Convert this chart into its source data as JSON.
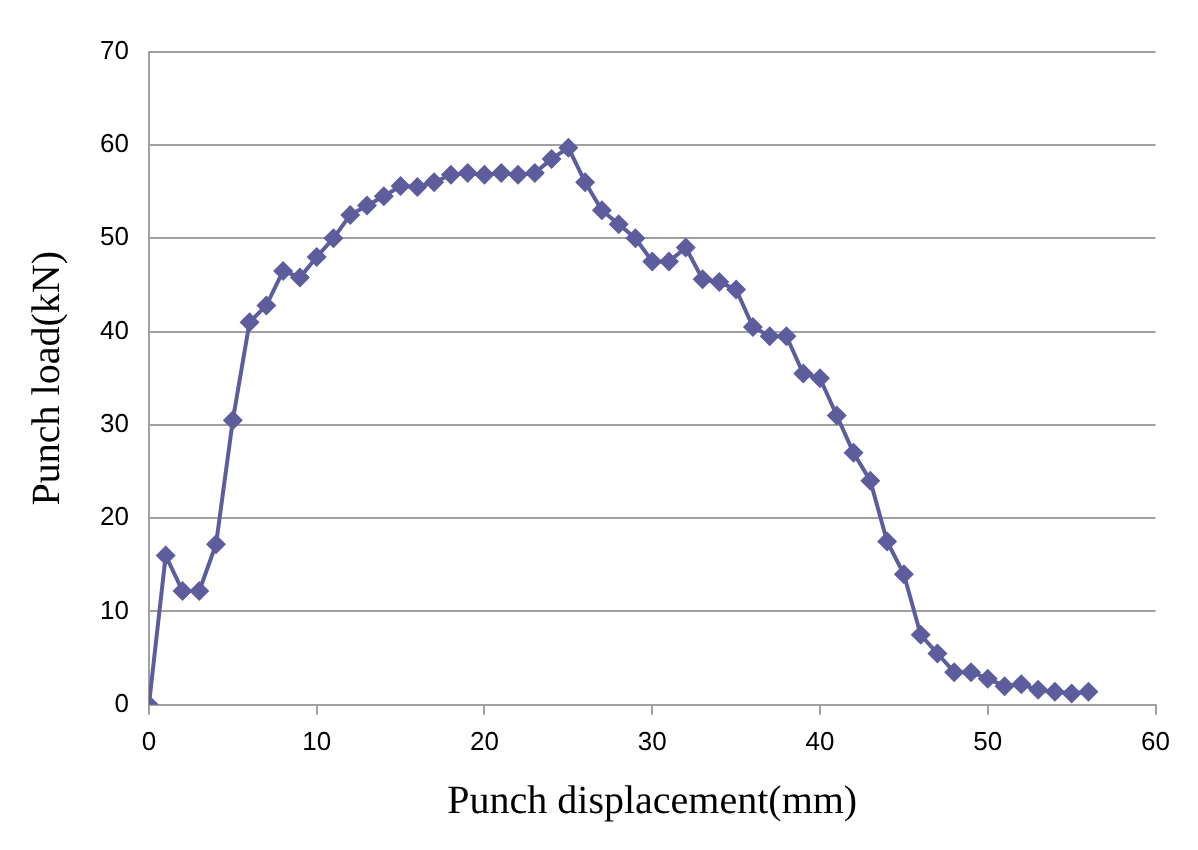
{
  "chart_data": {
    "type": "line",
    "xlabel": "Punch displacement(mm)",
    "ylabel": "Punch load(kN)",
    "series": [
      {
        "color": "#5d5c9c",
        "x": [
          0,
          1,
          2,
          3,
          4,
          5,
          6,
          7,
          8,
          9,
          10,
          11,
          12,
          13,
          14,
          15,
          16,
          17,
          18,
          19,
          20,
          21,
          22,
          23,
          24,
          25,
          26,
          27,
          28,
          29,
          30,
          31,
          32,
          33,
          34,
          35,
          36,
          37,
          38,
          39,
          40,
          41,
          42,
          43,
          44,
          45,
          46,
          47,
          48,
          49,
          50,
          51,
          52,
          53,
          54,
          55,
          56
        ],
        "values": [
          0,
          16,
          12.2,
          12.2,
          17.2,
          30.5,
          41,
          42.8,
          46.5,
          45.8,
          48,
          50,
          52.5,
          53.5,
          54.5,
          55.6,
          55.5,
          56,
          56.8,
          57,
          56.8,
          57,
          56.8,
          57,
          58.5,
          59.7,
          56,
          53,
          51.5,
          50,
          47.5,
          47.5,
          49,
          45.6,
          45.3,
          44.5,
          40.5,
          39.5,
          39.5,
          35.5,
          35,
          31,
          27,
          24,
          17.5,
          14,
          7.5,
          5.5,
          3.5,
          3.5,
          2.8,
          2,
          2.2,
          1.6,
          1.4,
          1.2,
          1.4
        ]
      }
    ],
    "xlim": [
      0,
      60
    ],
    "xticks": [
      0,
      10,
      20,
      30,
      40,
      50,
      60
    ],
    "ylim": [
      0,
      70
    ],
    "yticks": [
      0,
      10,
      20,
      30,
      40,
      50,
      60,
      70
    ],
    "grid": "y",
    "legend": false,
    "marker": "diamond",
    "line_style": "solid"
  }
}
